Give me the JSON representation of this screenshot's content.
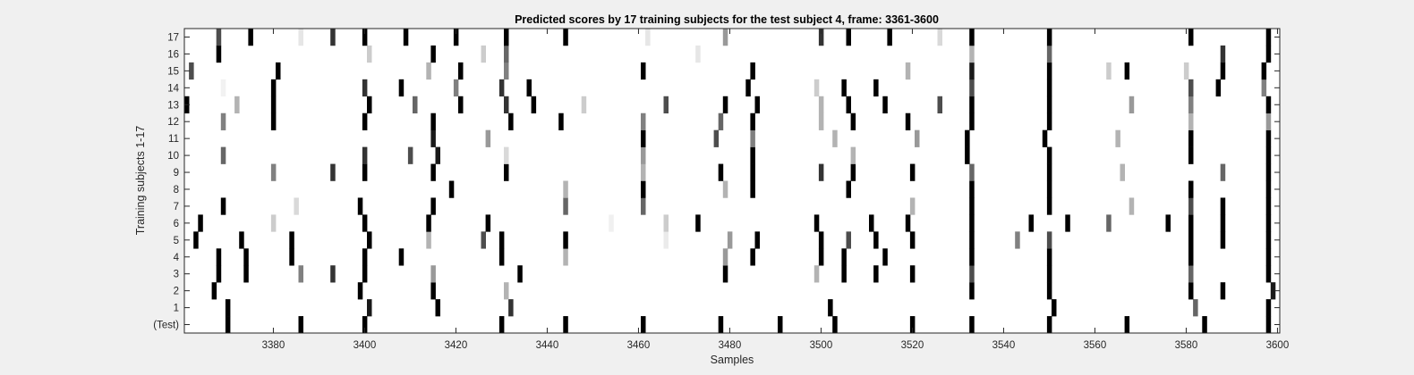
{
  "chart_data": {
    "type": "heatmap",
    "title": "Predicted scores by 17 training subjects for the test subject 4, frame: 3361-3600",
    "xlabel": "Samples",
    "ylabel": "Training subjects 1-17",
    "xlim": [
      3361,
      3600
    ],
    "x_ticks": [
      3380,
      3400,
      3420,
      3440,
      3460,
      3480,
      3500,
      3520,
      3540,
      3560,
      3580,
      3600
    ],
    "row_labels": [
      "(Test)",
      "1",
      "2",
      "3",
      "4",
      "5",
      "6",
      "7",
      "8",
      "9",
      "10",
      "11",
      "12",
      "13",
      "14",
      "15",
      "16",
      "17"
    ],
    "colormap": "gray-inverted (white = 0, black = 1)",
    "background_color": "#ffffff",
    "marks": [
      {
        "row": 0,
        "x": 3370,
        "v": 1
      },
      {
        "row": 0,
        "x": 3386,
        "v": 1
      },
      {
        "row": 0,
        "x": 3400,
        "v": 1
      },
      {
        "row": 0,
        "x": 3430,
        "v": 1
      },
      {
        "row": 0,
        "x": 3444,
        "v": 1
      },
      {
        "row": 0,
        "x": 3461,
        "v": 1
      },
      {
        "row": 0,
        "x": 3478,
        "v": 1
      },
      {
        "row": 0,
        "x": 3491,
        "v": 1
      },
      {
        "row": 0,
        "x": 3503,
        "v": 1
      },
      {
        "row": 0,
        "x": 3520,
        "v": 1
      },
      {
        "row": 0,
        "x": 3533,
        "v": 1
      },
      {
        "row": 0,
        "x": 3550,
        "v": 1
      },
      {
        "row": 0,
        "x": 3567,
        "v": 1
      },
      {
        "row": 0,
        "x": 3584,
        "v": 1
      },
      {
        "row": 0,
        "x": 3598,
        "v": 1
      },
      {
        "row": 1,
        "x": 3370,
        "v": 1
      },
      {
        "row": 1,
        "x": 3401,
        "v": 0.9
      },
      {
        "row": 1,
        "x": 3416,
        "v": 1
      },
      {
        "row": 1,
        "x": 3432,
        "v": 0.8
      },
      {
        "row": 1,
        "x": 3502,
        "v": 1
      },
      {
        "row": 1,
        "x": 3551,
        "v": 1
      },
      {
        "row": 1,
        "x": 3582,
        "v": 0.6
      },
      {
        "row": 1,
        "x": 3598,
        "v": 1
      },
      {
        "row": 2,
        "x": 3367,
        "v": 1
      },
      {
        "row": 2,
        "x": 3399,
        "v": 1
      },
      {
        "row": 2,
        "x": 3415,
        "v": 1
      },
      {
        "row": 2,
        "x": 3431,
        "v": 0.3
      },
      {
        "row": 2,
        "x": 3533,
        "v": 1
      },
      {
        "row": 2,
        "x": 3550,
        "v": 1
      },
      {
        "row": 2,
        "x": 3581,
        "v": 1
      },
      {
        "row": 2,
        "x": 3588,
        "v": 1
      },
      {
        "row": 2,
        "x": 3599,
        "v": 0.9
      },
      {
        "row": 3,
        "x": 3368,
        "v": 1
      },
      {
        "row": 3,
        "x": 3374,
        "v": 1
      },
      {
        "row": 3,
        "x": 3386,
        "v": 0.5
      },
      {
        "row": 3,
        "x": 3393,
        "v": 0.8
      },
      {
        "row": 3,
        "x": 3400,
        "v": 1
      },
      {
        "row": 3,
        "x": 3415,
        "v": 0.4
      },
      {
        "row": 3,
        "x": 3434,
        "v": 1
      },
      {
        "row": 3,
        "x": 3479,
        "v": 1
      },
      {
        "row": 3,
        "x": 3499,
        "v": 0.3
      },
      {
        "row": 3,
        "x": 3505,
        "v": 1
      },
      {
        "row": 3,
        "x": 3512,
        "v": 1
      },
      {
        "row": 3,
        "x": 3520,
        "v": 1
      },
      {
        "row": 3,
        "x": 3533,
        "v": 0.7
      },
      {
        "row": 3,
        "x": 3550,
        "v": 1
      },
      {
        "row": 3,
        "x": 3581,
        "v": 0.6
      },
      {
        "row": 3,
        "x": 3598,
        "v": 1
      },
      {
        "row": 4,
        "x": 3368,
        "v": 1
      },
      {
        "row": 4,
        "x": 3374,
        "v": 1
      },
      {
        "row": 4,
        "x": 3384,
        "v": 1
      },
      {
        "row": 4,
        "x": 3400,
        "v": 1
      },
      {
        "row": 4,
        "x": 3408,
        "v": 1
      },
      {
        "row": 4,
        "x": 3430,
        "v": 1
      },
      {
        "row": 4,
        "x": 3444,
        "v": 0.3
      },
      {
        "row": 4,
        "x": 3479,
        "v": 0.4
      },
      {
        "row": 4,
        "x": 3485,
        "v": 1
      },
      {
        "row": 4,
        "x": 3500,
        "v": 1
      },
      {
        "row": 4,
        "x": 3505,
        "v": 1
      },
      {
        "row": 4,
        "x": 3514,
        "v": 1
      },
      {
        "row": 4,
        "x": 3533,
        "v": 1
      },
      {
        "row": 4,
        "x": 3550,
        "v": 1
      },
      {
        "row": 4,
        "x": 3581,
        "v": 1
      },
      {
        "row": 4,
        "x": 3598,
        "v": 1
      },
      {
        "row": 5,
        "x": 3363,
        "v": 1
      },
      {
        "row": 5,
        "x": 3373,
        "v": 1
      },
      {
        "row": 5,
        "x": 3384,
        "v": 1
      },
      {
        "row": 5,
        "x": 3401,
        "v": 1
      },
      {
        "row": 5,
        "x": 3414,
        "v": 0.3
      },
      {
        "row": 5,
        "x": 3426,
        "v": 0.7
      },
      {
        "row": 5,
        "x": 3430,
        "v": 1
      },
      {
        "row": 5,
        "x": 3444,
        "v": 1
      },
      {
        "row": 5,
        "x": 3466,
        "v": 0.08
      },
      {
        "row": 5,
        "x": 3480,
        "v": 0.4
      },
      {
        "row": 5,
        "x": 3486,
        "v": 1
      },
      {
        "row": 5,
        "x": 3500,
        "v": 1
      },
      {
        "row": 5,
        "x": 3506,
        "v": 0.7
      },
      {
        "row": 5,
        "x": 3512,
        "v": 1
      },
      {
        "row": 5,
        "x": 3520,
        "v": 1
      },
      {
        "row": 5,
        "x": 3533,
        "v": 1
      },
      {
        "row": 5,
        "x": 3543,
        "v": 0.5
      },
      {
        "row": 5,
        "x": 3550,
        "v": 0.7
      },
      {
        "row": 5,
        "x": 3581,
        "v": 1
      },
      {
        "row": 5,
        "x": 3588,
        "v": 1
      },
      {
        "row": 5,
        "x": 3598,
        "v": 1
      },
      {
        "row": 6,
        "x": 3364,
        "v": 1
      },
      {
        "row": 6,
        "x": 3380,
        "v": 0.2
      },
      {
        "row": 6,
        "x": 3400,
        "v": 1
      },
      {
        "row": 6,
        "x": 3414,
        "v": 1
      },
      {
        "row": 6,
        "x": 3427,
        "v": 1
      },
      {
        "row": 6,
        "x": 3454,
        "v": 0.06
      },
      {
        "row": 6,
        "x": 3466,
        "v": 0.2
      },
      {
        "row": 6,
        "x": 3473,
        "v": 1
      },
      {
        "row": 6,
        "x": 3499,
        "v": 1
      },
      {
        "row": 6,
        "x": 3511,
        "v": 1
      },
      {
        "row": 6,
        "x": 3519,
        "v": 1
      },
      {
        "row": 6,
        "x": 3533,
        "v": 1
      },
      {
        "row": 6,
        "x": 3546,
        "v": 1
      },
      {
        "row": 6,
        "x": 3554,
        "v": 1
      },
      {
        "row": 6,
        "x": 3563,
        "v": 0.6
      },
      {
        "row": 6,
        "x": 3576,
        "v": 1
      },
      {
        "row": 6,
        "x": 3581,
        "v": 1
      },
      {
        "row": 6,
        "x": 3588,
        "v": 1
      },
      {
        "row": 6,
        "x": 3598,
        "v": 1
      },
      {
        "row": 7,
        "x": 3369,
        "v": 1
      },
      {
        "row": 7,
        "x": 3385,
        "v": 0.15
      },
      {
        "row": 7,
        "x": 3399,
        "v": 1
      },
      {
        "row": 7,
        "x": 3415,
        "v": 1
      },
      {
        "row": 7,
        "x": 3444,
        "v": 0.6
      },
      {
        "row": 7,
        "x": 3461,
        "v": 0.6
      },
      {
        "row": 7,
        "x": 3520,
        "v": 0.3
      },
      {
        "row": 7,
        "x": 3533,
        "v": 1
      },
      {
        "row": 7,
        "x": 3550,
        "v": 1
      },
      {
        "row": 7,
        "x": 3568,
        "v": 0.3
      },
      {
        "row": 7,
        "x": 3581,
        "v": 0.7
      },
      {
        "row": 7,
        "x": 3588,
        "v": 1
      },
      {
        "row": 7,
        "x": 3598,
        "v": 1
      },
      {
        "row": 8,
        "x": 3419,
        "v": 1
      },
      {
        "row": 8,
        "x": 3444,
        "v": 0.3
      },
      {
        "row": 8,
        "x": 3461,
        "v": 1
      },
      {
        "row": 8,
        "x": 3479,
        "v": 0.3
      },
      {
        "row": 8,
        "x": 3485,
        "v": 1
      },
      {
        "row": 8,
        "x": 3506,
        "v": 1
      },
      {
        "row": 8,
        "x": 3533,
        "v": 1
      },
      {
        "row": 8,
        "x": 3550,
        "v": 1
      },
      {
        "row": 8,
        "x": 3581,
        "v": 1
      },
      {
        "row": 8,
        "x": 3598,
        "v": 1
      },
      {
        "row": 9,
        "x": 3380,
        "v": 0.5
      },
      {
        "row": 9,
        "x": 3393,
        "v": 0.8
      },
      {
        "row": 9,
        "x": 3400,
        "v": 1
      },
      {
        "row": 9,
        "x": 3415,
        "v": 1
      },
      {
        "row": 9,
        "x": 3431,
        "v": 1
      },
      {
        "row": 9,
        "x": 3461,
        "v": 0.3
      },
      {
        "row": 9,
        "x": 3478,
        "v": 1
      },
      {
        "row": 9,
        "x": 3485,
        "v": 1
      },
      {
        "row": 9,
        "x": 3500,
        "v": 0.8
      },
      {
        "row": 9,
        "x": 3507,
        "v": 1
      },
      {
        "row": 9,
        "x": 3520,
        "v": 1
      },
      {
        "row": 9,
        "x": 3533,
        "v": 0.6
      },
      {
        "row": 9,
        "x": 3550,
        "v": 1
      },
      {
        "row": 9,
        "x": 3566,
        "v": 0.3
      },
      {
        "row": 9,
        "x": 3588,
        "v": 0.6
      },
      {
        "row": 9,
        "x": 3598,
        "v": 1
      },
      {
        "row": 10,
        "x": 3369,
        "v": 0.6
      },
      {
        "row": 10,
        "x": 3400,
        "v": 0.8
      },
      {
        "row": 10,
        "x": 3410,
        "v": 0.7
      },
      {
        "row": 10,
        "x": 3416,
        "v": 0.9
      },
      {
        "row": 10,
        "x": 3431,
        "v": 0.15
      },
      {
        "row": 10,
        "x": 3461,
        "v": 0.4
      },
      {
        "row": 10,
        "x": 3485,
        "v": 1
      },
      {
        "row": 10,
        "x": 3507,
        "v": 0.3
      },
      {
        "row": 10,
        "x": 3532,
        "v": 1
      },
      {
        "row": 10,
        "x": 3550,
        "v": 1
      },
      {
        "row": 10,
        "x": 3581,
        "v": 1
      },
      {
        "row": 10,
        "x": 3598,
        "v": 1
      },
      {
        "row": 11,
        "x": 3415,
        "v": 0.9
      },
      {
        "row": 11,
        "x": 3427,
        "v": 0.4
      },
      {
        "row": 11,
        "x": 3461,
        "v": 1
      },
      {
        "row": 11,
        "x": 3477,
        "v": 0.7
      },
      {
        "row": 11,
        "x": 3485,
        "v": 0.5
      },
      {
        "row": 11,
        "x": 3503,
        "v": 0.3
      },
      {
        "row": 11,
        "x": 3521,
        "v": 0.4
      },
      {
        "row": 11,
        "x": 3532,
        "v": 1
      },
      {
        "row": 11,
        "x": 3549,
        "v": 1
      },
      {
        "row": 11,
        "x": 3565,
        "v": 0.3
      },
      {
        "row": 11,
        "x": 3581,
        "v": 1
      },
      {
        "row": 11,
        "x": 3598,
        "v": 1
      },
      {
        "row": 12,
        "x": 3369,
        "v": 0.5
      },
      {
        "row": 12,
        "x": 3380,
        "v": 1
      },
      {
        "row": 12,
        "x": 3400,
        "v": 1
      },
      {
        "row": 12,
        "x": 3415,
        "v": 1
      },
      {
        "row": 12,
        "x": 3432,
        "v": 1
      },
      {
        "row": 12,
        "x": 3443,
        "v": 1
      },
      {
        "row": 12,
        "x": 3461,
        "v": 0.5
      },
      {
        "row": 12,
        "x": 3478,
        "v": 0.6
      },
      {
        "row": 12,
        "x": 3485,
        "v": 1
      },
      {
        "row": 12,
        "x": 3500,
        "v": 0.3
      },
      {
        "row": 12,
        "x": 3507,
        "v": 1
      },
      {
        "row": 12,
        "x": 3519,
        "v": 1
      },
      {
        "row": 12,
        "x": 3533,
        "v": 1
      },
      {
        "row": 12,
        "x": 3550,
        "v": 1
      },
      {
        "row": 12,
        "x": 3581,
        "v": 0.3
      },
      {
        "row": 12,
        "x": 3598,
        "v": 0.4
      },
      {
        "row": 13,
        "x": 3361,
        "v": 1
      },
      {
        "row": 13,
        "x": 3372,
        "v": 0.3
      },
      {
        "row": 13,
        "x": 3380,
        "v": 1
      },
      {
        "row": 13,
        "x": 3401,
        "v": 1
      },
      {
        "row": 13,
        "x": 3411,
        "v": 0.6
      },
      {
        "row": 13,
        "x": 3421,
        "v": 1
      },
      {
        "row": 13,
        "x": 3431,
        "v": 0.8
      },
      {
        "row": 13,
        "x": 3437,
        "v": 1
      },
      {
        "row": 13,
        "x": 3448,
        "v": 0.2
      },
      {
        "row": 13,
        "x": 3466,
        "v": 0.7
      },
      {
        "row": 13,
        "x": 3479,
        "v": 1
      },
      {
        "row": 13,
        "x": 3486,
        "v": 1
      },
      {
        "row": 13,
        "x": 3500,
        "v": 0.3
      },
      {
        "row": 13,
        "x": 3506,
        "v": 1
      },
      {
        "row": 13,
        "x": 3514,
        "v": 1
      },
      {
        "row": 13,
        "x": 3526,
        "v": 0.7
      },
      {
        "row": 13,
        "x": 3533,
        "v": 1
      },
      {
        "row": 13,
        "x": 3550,
        "v": 1
      },
      {
        "row": 13,
        "x": 3568,
        "v": 0.4
      },
      {
        "row": 13,
        "x": 3581,
        "v": 0.5
      },
      {
        "row": 13,
        "x": 3598,
        "v": 1
      },
      {
        "row": 14,
        "x": 3369,
        "v": 0.05
      },
      {
        "row": 14,
        "x": 3380,
        "v": 1
      },
      {
        "row": 14,
        "x": 3400,
        "v": 0.8
      },
      {
        "row": 14,
        "x": 3408,
        "v": 1
      },
      {
        "row": 14,
        "x": 3420,
        "v": 0.5
      },
      {
        "row": 14,
        "x": 3430,
        "v": 0.8
      },
      {
        "row": 14,
        "x": 3436,
        "v": 1
      },
      {
        "row": 14,
        "x": 3484,
        "v": 1
      },
      {
        "row": 14,
        "x": 3499,
        "v": 0.2
      },
      {
        "row": 14,
        "x": 3505,
        "v": 1
      },
      {
        "row": 14,
        "x": 3512,
        "v": 1
      },
      {
        "row": 14,
        "x": 3533,
        "v": 0.7
      },
      {
        "row": 14,
        "x": 3550,
        "v": 1
      },
      {
        "row": 14,
        "x": 3581,
        "v": 0.7
      },
      {
        "row": 14,
        "x": 3587,
        "v": 1
      },
      {
        "row": 14,
        "x": 3597,
        "v": 0.5
      },
      {
        "row": 15,
        "x": 3362,
        "v": 0.7
      },
      {
        "row": 15,
        "x": 3381,
        "v": 1
      },
      {
        "row": 15,
        "x": 3414,
        "v": 0.3
      },
      {
        "row": 15,
        "x": 3421,
        "v": 1
      },
      {
        "row": 15,
        "x": 3431,
        "v": 0.5
      },
      {
        "row": 15,
        "x": 3461,
        "v": 1
      },
      {
        "row": 15,
        "x": 3485,
        "v": 1
      },
      {
        "row": 15,
        "x": 3519,
        "v": 0.3
      },
      {
        "row": 15,
        "x": 3533,
        "v": 0.9
      },
      {
        "row": 15,
        "x": 3550,
        "v": 1
      },
      {
        "row": 15,
        "x": 3563,
        "v": 0.2
      },
      {
        "row": 15,
        "x": 3567,
        "v": 1
      },
      {
        "row": 15,
        "x": 3580,
        "v": 0.2
      },
      {
        "row": 15,
        "x": 3588,
        "v": 1
      },
      {
        "row": 15,
        "x": 3597,
        "v": 1
      },
      {
        "row": 16,
        "x": 3368,
        "v": 1
      },
      {
        "row": 16,
        "x": 3401,
        "v": 0.2
      },
      {
        "row": 16,
        "x": 3415,
        "v": 1
      },
      {
        "row": 16,
        "x": 3426,
        "v": 0.2
      },
      {
        "row": 16,
        "x": 3431,
        "v": 0.6
      },
      {
        "row": 16,
        "x": 3473,
        "v": 0.1
      },
      {
        "row": 16,
        "x": 3533,
        "v": 0.3
      },
      {
        "row": 16,
        "x": 3550,
        "v": 0.6
      },
      {
        "row": 16,
        "x": 3588,
        "v": 0.8
      },
      {
        "row": 16,
        "x": 3598,
        "v": 1
      },
      {
        "row": 17,
        "x": 3368,
        "v": 0.7
      },
      {
        "row": 17,
        "x": 3375,
        "v": 1
      },
      {
        "row": 17,
        "x": 3386,
        "v": 0.1
      },
      {
        "row": 17,
        "x": 3393,
        "v": 0.8
      },
      {
        "row": 17,
        "x": 3400,
        "v": 1
      },
      {
        "row": 17,
        "x": 3409,
        "v": 1
      },
      {
        "row": 17,
        "x": 3420,
        "v": 1
      },
      {
        "row": 17,
        "x": 3431,
        "v": 1
      },
      {
        "row": 17,
        "x": 3444,
        "v": 1
      },
      {
        "row": 17,
        "x": 3462,
        "v": 0.1
      },
      {
        "row": 17,
        "x": 3479,
        "v": 0.4
      },
      {
        "row": 17,
        "x": 3500,
        "v": 0.8
      },
      {
        "row": 17,
        "x": 3506,
        "v": 1
      },
      {
        "row": 17,
        "x": 3515,
        "v": 1
      },
      {
        "row": 17,
        "x": 3526,
        "v": 0.15
      },
      {
        "row": 17,
        "x": 3533,
        "v": 1
      },
      {
        "row": 17,
        "x": 3550,
        "v": 1
      },
      {
        "row": 17,
        "x": 3581,
        "v": 1
      },
      {
        "row": 17,
        "x": 3598,
        "v": 1
      }
    ]
  }
}
